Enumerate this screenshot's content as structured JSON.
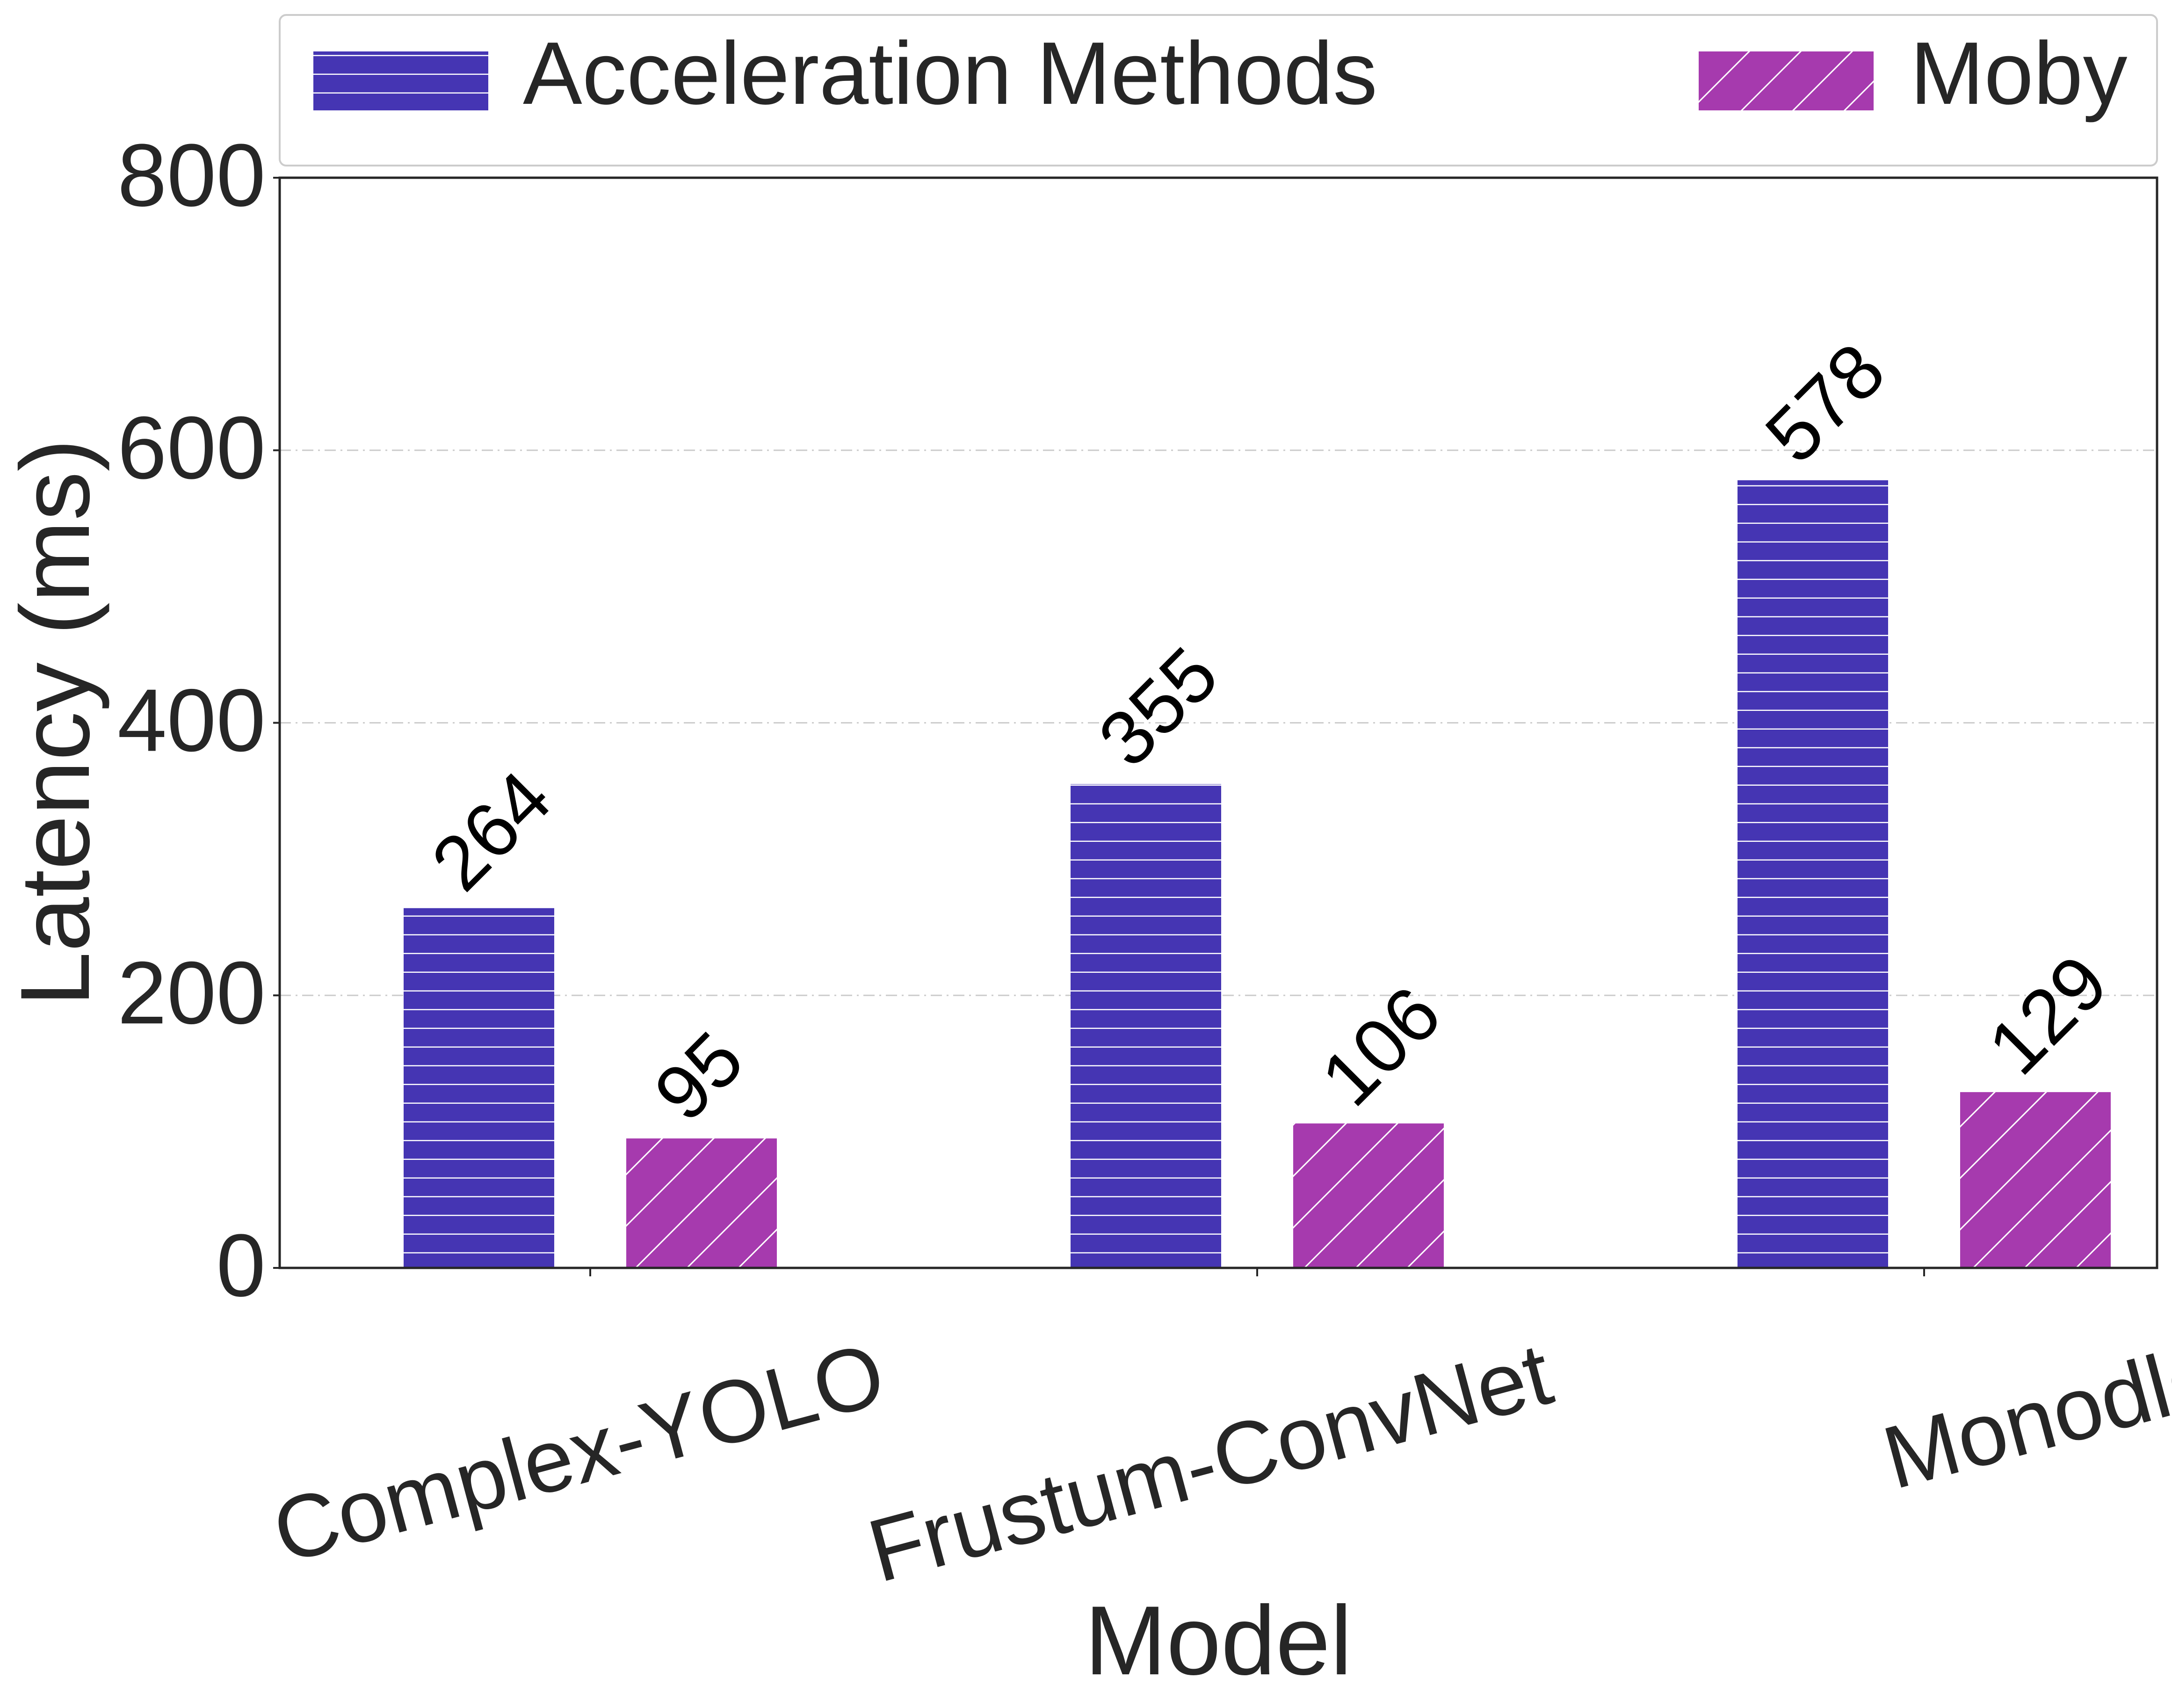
{
  "chart_data": {
    "type": "bar",
    "title": "",
    "xlabel": "Model",
    "ylabel": "Latency (ms)",
    "ylim": [
      0,
      800
    ],
    "yticks": [
      0,
      200,
      400,
      600,
      800
    ],
    "categories": [
      "Complex-YOLO",
      "Frustum-ConvNet",
      "Monodle"
    ],
    "series": [
      {
        "name": "Acceleration Methods",
        "values": [
          264,
          355,
          578
        ],
        "color": "#4535B3",
        "pattern": "horizontal-lines"
      },
      {
        "name": "Moby",
        "values": [
          95,
          106,
          129
        ],
        "color": "#A63AAE",
        "pattern": "diagonal-lines"
      }
    ],
    "grid": "horizontal dash-dot",
    "legend_position": "top"
  }
}
